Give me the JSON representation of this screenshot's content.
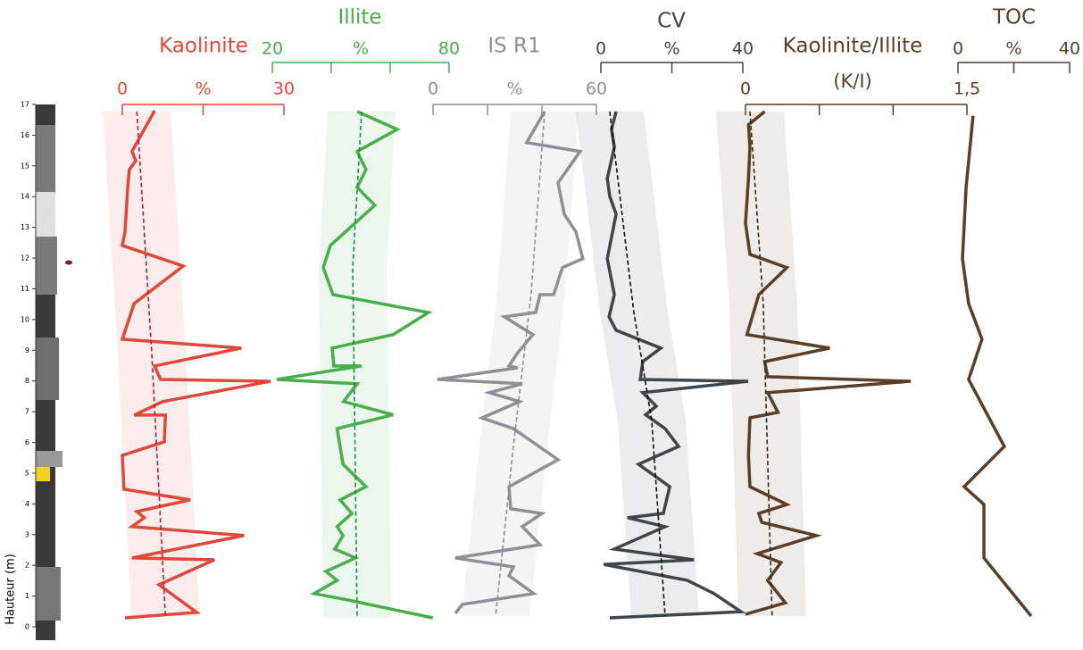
{
  "depth_axis": {
    "label": "Hauteur (m)",
    "ylim": [
      0,
      17
    ],
    "yticks": [
      0,
      1,
      2,
      3,
      4,
      5,
      6,
      7,
      8,
      9,
      10,
      11,
      12,
      13,
      14,
      15,
      16,
      17
    ]
  },
  "chart_data": [
    {
      "type": "line",
      "title": "Kaolinite",
      "xlabel": "%",
      "xlim": [
        0,
        30
      ],
      "xticks": [
        0,
        15,
        30
      ],
      "series": [
        {
          "color": "#e0483a",
          "values": [
            6.0,
            1.8,
            2.5,
            1.3,
            1.0,
            0.5,
            0,
            11.3,
            2.2,
            0,
            22.1,
            6.0,
            7.1,
            27.5,
            7.5,
            2.2,
            8.0,
            7.8,
            0,
            0.3,
            12.6,
            2.7,
            4.1,
            1.8,
            22.6,
            1.8,
            17.1,
            6.8,
            13.8,
            0.5
          ],
          "depths": [
            16.8,
            15.47,
            15.17,
            14.88,
            14.3,
            12.85,
            12.41,
            11.74,
            10.52,
            9.36,
            9.07,
            8.49,
            8.05,
            7.99,
            7.33,
            6.89,
            6.89,
            6.02,
            5.58,
            4.48,
            4.13,
            3.75,
            3.55,
            3.26,
            2.97,
            2.24,
            2.18,
            1.37,
            0.47,
            0.29
          ]
        },
        {
          "color": "#b8203a",
          "dashed": true,
          "values": [
            2.7,
            5.5,
            8
          ],
          "depths": [
            16.77,
            8.78,
            0.35
          ]
        }
      ]
    },
    {
      "type": "line",
      "title": "Illite",
      "xlabel": "%",
      "xlim": [
        20,
        80
      ],
      "xticks": [
        20,
        40,
        60,
        80
      ],
      "series": [
        {
          "color": "#47b04a",
          "values": [
            48.8,
            62.4,
            48.8,
            51.8,
            48.8,
            54.8,
            39.7,
            37.3,
            40.6,
            73,
            61,
            40.3,
            40.9,
            50.3,
            21.5,
            48.8,
            44.2,
            61,
            42,
            44,
            51.8,
            43,
            47,
            42,
            44,
            41.2,
            48.2,
            38.2,
            42,
            34.2,
            45.8,
            74.5
          ],
          "depths": [
            16.77,
            16.19,
            15.47,
            14.88,
            14.3,
            13.72,
            12.41,
            11.69,
            10.81,
            10.23,
            9.51,
            9.07,
            8.49,
            8.49,
            8.05,
            7.91,
            7.33,
            6.9,
            6.45,
            5.29,
            4.56,
            4.13,
            3.69,
            3.26,
            2.97,
            2.53,
            2.24,
            1.8,
            1.51,
            1.08,
            0.87,
            0.29
          ]
        },
        {
          "color": "#1f8a4a",
          "dashed": true,
          "values": [
            50.3,
            47.3,
            48.8
          ],
          "depths": [
            16.77,
            11.69,
            0.29
          ]
        }
      ]
    },
    {
      "type": "line",
      "title": "IS R1",
      "xlabel": "%",
      "xlim": [
        0,
        60
      ],
      "xticks": [
        0,
        20,
        40,
        60
      ],
      "series": [
        {
          "color": "#8d9196",
          "values": [
            41,
            34.4,
            54,
            45.9,
            48.2,
            52.5,
            55,
            47.5,
            44.3,
            39.3,
            37.7,
            26.2,
            36.7,
            31.1,
            27.9,
            31.1,
            1.6,
            32.8,
            20.7,
            31.8,
            18,
            29.5,
            45.9,
            27.9,
            28.5,
            40,
            32.8,
            39.3,
            8.2,
            29.5,
            27.9,
            37,
            10.8,
            8.2
          ],
          "depths": [
            16.77,
            15.76,
            15.47,
            14.45,
            13.43,
            12.85,
            11.98,
            11.69,
            10.81,
            10.81,
            10.23,
            10.09,
            9.51,
            8.92,
            8.49,
            8.43,
            8.05,
            7.91,
            7.62,
            7.33,
            6.8,
            6.45,
            5.44,
            4.56,
            3.84,
            3.69,
            3.26,
            2.67,
            2.24,
            1.95,
            1.66,
            1.08,
            0.73,
            0.44
          ]
        },
        {
          "color": "#8d9196",
          "dashed": true,
          "values": [
            41,
            36,
            29.5,
            23
          ],
          "depths": [
            16.77,
            10.81,
            5.87,
            0.35
          ]
        }
      ]
    },
    {
      "type": "line",
      "title": "CV",
      "xlabel": "%",
      "xlim": [
        0,
        40
      ],
      "xticks": [
        0,
        20,
        40
      ],
      "series": [
        {
          "color": "#3e464c",
          "values": [
            4.3,
            3,
            3.8,
            1.8,
            2.5,
            4.3,
            1.8,
            3.8,
            2.3,
            4.3,
            16.9,
            11.8,
            11.1,
            41.5,
            11.8,
            15.6,
            12.6,
            18.1,
            21.9,
            10.6,
            19.4,
            17.6,
            7.5,
            18.1,
            3.8,
            26.2,
            0.8,
            24.4,
            31.9,
            39.5,
            2.5
          ],
          "depths": [
            16.77,
            16.19,
            15.61,
            14.59,
            14.01,
            13.43,
            11.98,
            10.81,
            10.09,
            9.65,
            9.07,
            8.63,
            8.05,
            7.99,
            7.62,
            7.18,
            6.9,
            6.45,
            5.87,
            5.29,
            4.56,
            3.69,
            3.55,
            3.26,
            2.53,
            2.18,
            2.03,
            1.51,
            1.08,
            0.49,
            0.29
          ]
        },
        {
          "color": "#111111",
          "dashed": true,
          "values": [
            2.5,
            9.3,
            14.3,
            18.1
          ],
          "depths": [
            16.77,
            10.23,
            6.74,
            0.35
          ]
        }
      ]
    },
    {
      "type": "line",
      "title": "Kaolinite/Illite",
      "subtitle": "(K/I)",
      "xlim": [
        0,
        1.5
      ],
      "xticks": [
        0,
        0.5,
        1,
        {
          "value": 1.5,
          "label": "1,5"
        }
      ],
      "series": [
        {
          "color": "#5a3e27",
          "values": [
            0.13,
            0.02,
            0.03,
            0.02,
            0,
            0.03,
            0.28,
            0.09,
            0.01,
            0.57,
            0.13,
            0.15,
            1.12,
            0.15,
            0.22,
            0.03,
            0.02,
            0.03,
            0.28,
            0.09,
            0.11,
            0.48,
            0.08,
            0.24,
            0.15,
            0.27,
            0
          ],
          "depths": [
            16.77,
            16.34,
            15.61,
            14.59,
            13.14,
            12.12,
            11.69,
            10.81,
            9.51,
            9.07,
            8.63,
            8.14,
            7.99,
            7.62,
            6.98,
            6.8,
            5.58,
            4.56,
            3.98,
            3.69,
            3.4,
            2.97,
            2.38,
            2.09,
            1.51,
            0.78,
            0.41
          ]
        },
        {
          "color": "#3a2817",
          "dashed": true,
          "values": [
            0.03,
            0.12,
            0.18
          ],
          "depths": [
            16.77,
            10.52,
            0.35
          ]
        }
      ]
    },
    {
      "type": "line",
      "title": "TOC",
      "xlabel": "%",
      "xlim": [
        0,
        40
      ],
      "xticks": [
        0,
        20,
        40
      ],
      "series": [
        {
          "color": "#5a3e27",
          "values": [
            5.4,
            2.9,
            1.6,
            3.8,
            8.6,
            3.8,
            16.6,
            2.2,
            9.3,
            9.3,
            26.2
          ],
          "depths": [
            16.63,
            14.3,
            11.98,
            10.52,
            9.36,
            8.05,
            5.87,
            4.56,
            3.98,
            2.24,
            0.35
          ]
        }
      ]
    }
  ]
}
